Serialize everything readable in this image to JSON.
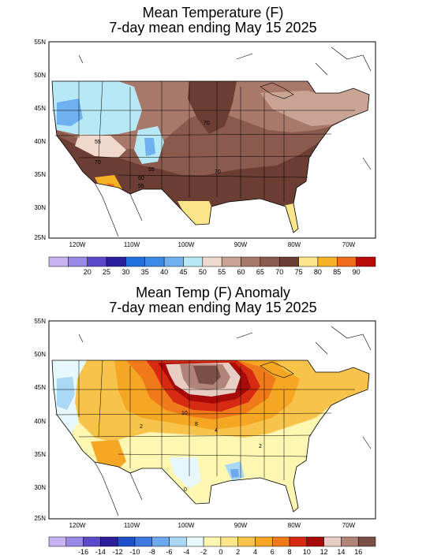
{
  "top_panel": {
    "title_line1": "Mean Temperature (F)",
    "title_line2": "7-day mean ending May 15 2025",
    "lat_labels": [
      "55N",
      "50N",
      "45N",
      "40N",
      "35N",
      "30N",
      "25N"
    ],
    "lon_labels": [
      "120W",
      "110W",
      "100W",
      "90W",
      "80W",
      "70W"
    ],
    "contour_labels": [
      "55",
      "70",
      "70",
      "55",
      "60",
      "55",
      "70"
    ],
    "colorbar": {
      "colors": [
        "#c8b4f0",
        "#9a88e6",
        "#5a4acb",
        "#2a1e9c",
        "#1f6fe0",
        "#3c8ae8",
        "#6eb0f0",
        "#b7e8f6",
        "#f0d8cc",
        "#c9a394",
        "#a8786a",
        "#8b5a4e",
        "#6b3d33",
        "#fde589",
        "#f5b324",
        "#f26a1b",
        "#ba0b0b"
      ],
      "labels": [
        "20",
        "25",
        "30",
        "35",
        "40",
        "45",
        "50",
        "55",
        "60",
        "65",
        "70",
        "75",
        "80",
        "85",
        "90"
      ]
    }
  },
  "bottom_panel": {
    "title_line1": "Mean Temp (F) Anomaly",
    "title_line2": "7-day mean ending May 15 2025",
    "lat_labels": [
      "55N",
      "50N",
      "45N",
      "40N",
      "35N",
      "30N",
      "25N"
    ],
    "lon_labels": [
      "120W",
      "110W",
      "100W",
      "90W",
      "80W",
      "70W"
    ],
    "contour_labels": [
      "10",
      "8",
      "4",
      "2",
      "2",
      "0"
    ],
    "colorbar": {
      "colors": [
        "#c8b4f0",
        "#9a88e6",
        "#5a4acb",
        "#2a1e9c",
        "#1f4fc8",
        "#3c78e0",
        "#6ea8ee",
        "#a8d8f4",
        "#e6f8fc",
        "#fdf7b2",
        "#fde589",
        "#f7c34a",
        "#f5a623",
        "#f07a1a",
        "#d62a12",
        "#a80a0a",
        "#e8cdc4",
        "#b08478",
        "#7a5046"
      ],
      "labels": [
        "-16",
        "-14",
        "-12",
        "-10",
        "-8",
        "-6",
        "-4",
        "-2",
        "0",
        "2",
        "4",
        "6",
        "8",
        "10",
        "12",
        "14",
        "16"
      ]
    }
  }
}
